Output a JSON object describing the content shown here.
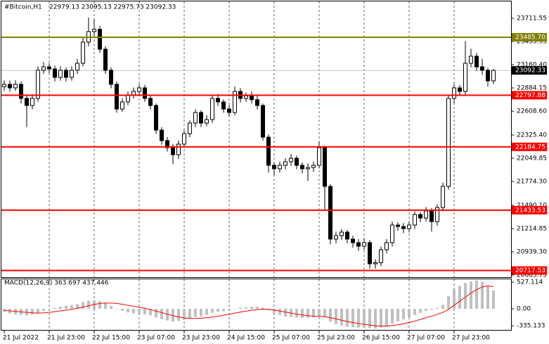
{
  "chart_data": [
    {
      "type": "candlestick",
      "title": "#Bitcoin,H1",
      "subtitle": "22979.13 23095.13 22975.73 23092.33",
      "categories": [
        "21 Jul 2022",
        null,
        null,
        null,
        null,
        null,
        null,
        null,
        "21 Jul 23:00",
        null,
        null,
        null,
        null,
        null,
        null,
        null,
        "22 Jul 15:00",
        null,
        null,
        null,
        null,
        null,
        null,
        null,
        "23 Jul 07:00",
        null,
        null,
        null,
        null,
        null,
        null,
        null,
        "23 Jul 23:00",
        null,
        null,
        null,
        null,
        null,
        null,
        null,
        "24 Jul 15:00",
        null,
        null,
        null,
        null,
        null,
        null,
        null,
        "25 Jul 07:00",
        null,
        null,
        null,
        null,
        null,
        null,
        null,
        "25 Jul 23:00",
        null,
        null,
        null,
        null,
        null,
        null,
        null,
        "26 Jul 15:00",
        null,
        null,
        null,
        null,
        null,
        null,
        null,
        "27 Jul 07:00",
        null,
        null,
        null,
        null,
        null,
        null,
        null,
        "27 Jul 23:00",
        null,
        null,
        null,
        null,
        null,
        null,
        null
      ],
      "open": [
        22900,
        22927,
        22885,
        22927,
        22760,
        22676,
        22760,
        23094,
        23135,
        23110,
        23010,
        23094,
        23010,
        23094,
        23177,
        23428,
        23553,
        23580,
        23344,
        23094,
        22927,
        22634,
        22718,
        22801,
        22843,
        22885,
        22760,
        22676,
        22384,
        22259,
        22175,
        22092,
        22217,
        22342,
        22467,
        22593,
        22467,
        22509,
        22760,
        22718,
        22634,
        22593,
        22843,
        22760,
        22790,
        22745,
        22676,
        22300,
        21966,
        21925,
        21966,
        22008,
        22050,
        21966,
        21925,
        21940,
        21966,
        22175,
        21716,
        21090,
        21131,
        21173,
        21090,
        21048,
        21006,
        21048,
        20797,
        20810,
        20964,
        21048,
        21257,
        21240,
        21215,
        21257,
        21382,
        21340,
        21424,
        21298,
        21465,
        21716,
        22760,
        22885,
        22843,
        23177,
        23261,
        23135,
        23094,
        22968
      ],
      "high": [
        22972,
        22970,
        22975,
        22960,
        22800,
        22810,
        23140,
        23190,
        23180,
        23150,
        23140,
        23130,
        23140,
        23230,
        23480,
        23720,
        23700,
        23620,
        23380,
        23130,
        22960,
        22760,
        22840,
        22890,
        22930,
        22920,
        22800,
        22700,
        22420,
        22300,
        22220,
        22260,
        22380,
        22500,
        22630,
        22620,
        22560,
        22800,
        22810,
        22750,
        22680,
        22900,
        22880,
        22830,
        22840,
        22790,
        22700,
        22330,
        22000,
        22010,
        22050,
        22100,
        22080,
        22000,
        21990,
        22010,
        22240,
        22200,
        21740,
        21180,
        21210,
        21200,
        21130,
        21090,
        21100,
        21080,
        20850,
        21000,
        21090,
        21300,
        21290,
        21280,
        21300,
        21420,
        21410,
        21470,
        21460,
        21500,
        21760,
        22800,
        22930,
        22920,
        23440,
        23350,
        23300,
        23230,
        23120,
        23110
      ],
      "low": [
        22850,
        22840,
        22850,
        22700,
        22420,
        22630,
        22720,
        23050,
        23060,
        22960,
        22970,
        22960,
        22970,
        23050,
        23140,
        23380,
        23500,
        23300,
        23050,
        22880,
        22590,
        22600,
        22680,
        22760,
        22800,
        22720,
        22630,
        22340,
        22210,
        22130,
        21980,
        22040,
        22180,
        22300,
        22420,
        22420,
        22430,
        22470,
        22670,
        22590,
        22550,
        22560,
        22710,
        22720,
        22700,
        22630,
        22260,
        21880,
        21850,
        21880,
        21920,
        21960,
        21920,
        21870,
        21780,
        21890,
        21930,
        21440,
        21030,
        21040,
        21080,
        21040,
        20990,
        20950,
        20960,
        20740,
        20740,
        20770,
        20920,
        21000,
        21190,
        21160,
        21170,
        21210,
        21290,
        21300,
        21180,
        21250,
        21420,
        21680,
        22700,
        22790,
        22800,
        23130,
        23090,
        23040,
        22900,
        22930
      ],
      "close": [
        22927,
        22885,
        22927,
        22760,
        22676,
        22760,
        23094,
        23135,
        23110,
        23010,
        23094,
        23010,
        23094,
        23177,
        23428,
        23553,
        23580,
        23344,
        23094,
        22927,
        22634,
        22718,
        22801,
        22843,
        22885,
        22760,
        22676,
        22384,
        22259,
        22175,
        22092,
        22217,
        22342,
        22467,
        22593,
        22467,
        22509,
        22760,
        22718,
        22634,
        22593,
        22843,
        22760,
        22790,
        22745,
        22676,
        22300,
        21966,
        21925,
        21966,
        22008,
        22050,
        21966,
        21925,
        21940,
        21966,
        22175,
        21716,
        21090,
        21131,
        21173,
        21090,
        21048,
        21006,
        21048,
        20797,
        20810,
        20964,
        21048,
        21257,
        21240,
        21215,
        21257,
        21382,
        21340,
        21424,
        21298,
        21465,
        21716,
        22760,
        22885,
        22843,
        23177,
        23261,
        23135,
        23094,
        22968,
        23092.33
      ],
      "ylim": [
        20630,
        23928
      ],
      "yticks": [
        23711.55,
        23435.95,
        {
          "value": 23160.4,
          "label": "23160.40"
        },
        22884.15,
        {
          "value": 22608.6,
          "label": "22608.60"
        },
        {
          "value": 22325.4,
          "label": "22325.40"
        },
        22049.85,
        {
          "value": 21774.3,
          "label": "21774.30"
        },
        {
          "value": 21490.1,
          "label": "21490.10"
        },
        21214.85,
        {
          "value": 20939.3,
          "label": "20939.30"
        },
        20663.75
      ],
      "levels": [
        {
          "value": 23485.7,
          "label": "23485.70",
          "color": "#808000"
        },
        {
          "value": 22797.88,
          "color": "#ff0000"
        },
        {
          "value": 22184.75,
          "color": "#ff0000"
        },
        {
          "value": 21433.53,
          "color": "#ff0000"
        },
        {
          "value": 20717.53,
          "color": "#ff0000"
        }
      ],
      "last_price": 23092.33,
      "grid": true
    },
    {
      "type": "macd",
      "title": "MACD(12,26,9) 363.697 437.446",
      "series": [
        {
          "name": "MACD",
          "color": "#c0c0c0",
          "values": [
            -60,
            -90,
            -110,
            -120,
            -130,
            -110,
            -80,
            -40,
            -10,
            20,
            40,
            60,
            70,
            90,
            130,
            160,
            170,
            150,
            110,
            60,
            0,
            -40,
            -70,
            -90,
            -100,
            -110,
            -130,
            -170,
            -200,
            -230,
            -250,
            -240,
            -220,
            -190,
            -160,
            -150,
            -120,
            -80,
            -60,
            -50,
            -30,
            0,
            20,
            30,
            40,
            40,
            20,
            -30,
            -80,
            -120,
            -150,
            -160,
            -170,
            -180,
            -180,
            -170,
            -140,
            -170,
            -250,
            -300,
            -330,
            -350,
            -360,
            -370,
            -360,
            -380,
            -390,
            -370,
            -340,
            -290,
            -250,
            -210,
            -170,
            -120,
            -80,
            -40,
            -20,
            20,
            80,
            250,
            380,
            450,
            510,
            540,
            560,
            530,
            450,
            363.697
          ]
        },
        {
          "name": "Signal",
          "color": "#ff0000",
          "values": [
            -30,
            -40,
            -50,
            -60,
            -70,
            -80,
            -85,
            -80,
            -70,
            -55,
            -40,
            -25,
            -10,
            10,
            35,
            60,
            85,
            105,
            115,
            115,
            105,
            90,
            70,
            50,
            30,
            10,
            -15,
            -45,
            -75,
            -105,
            -135,
            -160,
            -180,
            -190,
            -190,
            -185,
            -175,
            -160,
            -145,
            -125,
            -105,
            -85,
            -65,
            -45,
            -30,
            -15,
            -5,
            -10,
            -25,
            -45,
            -65,
            -85,
            -105,
            -120,
            -135,
            -145,
            -150,
            -155,
            -175,
            -200,
            -225,
            -250,
            -270,
            -290,
            -305,
            -320,
            -335,
            -340,
            -340,
            -330,
            -315,
            -295,
            -270,
            -240,
            -210,
            -175,
            -145,
            -110,
            -70,
            -10,
            70,
            150,
            230,
            310,
            380,
            430,
            450,
            437.446
          ]
        }
      ],
      "ylim": [
        -430,
        610
      ],
      "yticks": [
        527.114,
        {
          "value": 0,
          "label": "0.00"
        },
        -335.133
      ]
    }
  ]
}
